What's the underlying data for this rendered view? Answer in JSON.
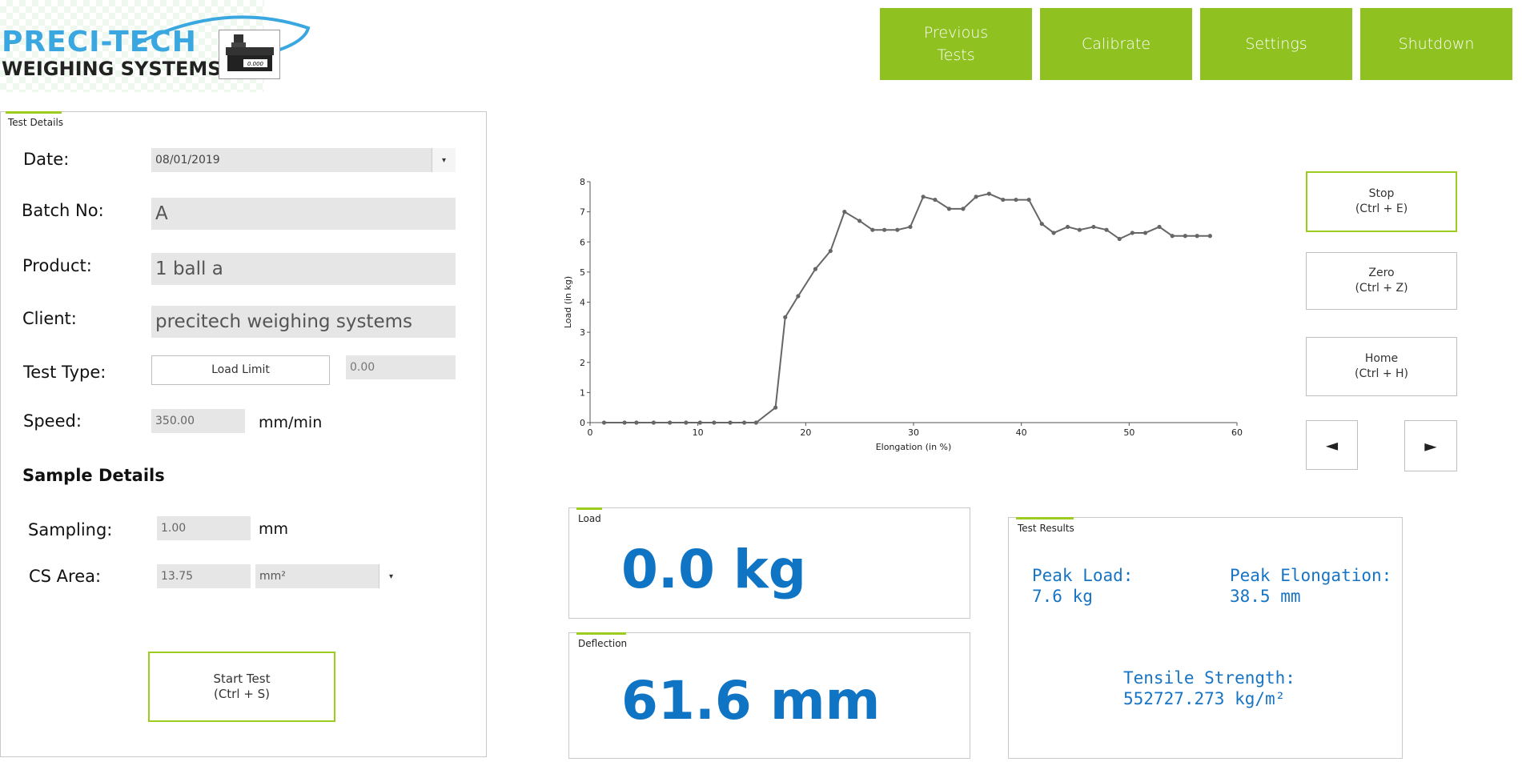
{
  "logo": {
    "line1": "PRECI-TECH",
    "line2": "WEIGHING SYSTEMS",
    "display": "0.000"
  },
  "nav": {
    "previous_tests": "Previous\nTests",
    "calibrate": "Calibrate",
    "settings": "Settings",
    "shutdown": "Shutdown"
  },
  "test_details": {
    "title": "Test Details",
    "date_label": "Date:",
    "date_value": "08/01/2019",
    "batch_label": "Batch No:",
    "batch_value": "A",
    "product_label": "Product:",
    "product_value": "1 ball a",
    "client_label": "Client:",
    "client_value": "precitech weighing systems",
    "test_type_label": "Test Type:",
    "test_type_button": "Load Limit",
    "test_type_value": "0.00",
    "speed_label": "Speed:",
    "speed_value": "350.00",
    "speed_unit": "mm/min",
    "sample_heading": "Sample Details",
    "sampling_label": "Sampling:",
    "sampling_value": "1.00",
    "sampling_unit": "mm",
    "cs_area_label": "CS Area:",
    "cs_area_value": "13.75",
    "cs_area_unit": "mm²",
    "start_button": "Start Test\n(Ctrl + S)"
  },
  "controls": {
    "stop": "Stop\n(Ctrl + E)",
    "zero": "Zero\n(Ctrl + Z)",
    "home": "Home\n(Ctrl + H)",
    "left_arrow": "◄",
    "right_arrow": "►"
  },
  "load_panel": {
    "title": "Load",
    "value": "0.0 kg"
  },
  "deflection_panel": {
    "title": "Deflection",
    "value": "61.6 mm"
  },
  "results": {
    "title": "Test Results",
    "peak_load": "Peak Load:\n7.6 kg",
    "peak_elongation": "Peak Elongation:\n38.5 mm",
    "tensile_strength": "Tensile Strength:\n552727.273 kg/m²"
  },
  "colors": {
    "accent": "#8fc121",
    "value_blue": "#1074c4"
  },
  "chart_data": {
    "type": "line",
    "xlabel": "Elongation (in %)",
    "ylabel": "Load (in kg)",
    "xlim": [
      0,
      60
    ],
    "ylim": [
      0,
      8
    ],
    "xticks": [
      0,
      10,
      20,
      30,
      40,
      50,
      60
    ],
    "yticks": [
      0,
      1,
      2,
      3,
      4,
      5,
      6,
      7,
      8
    ],
    "series": [
      {
        "x": [
          1.3,
          3.2,
          4.3,
          5.9,
          7.4,
          8.9,
          10.2,
          11.5,
          13.0,
          14.3,
          15.4,
          17.2,
          18.1,
          19.3,
          20.9,
          22.3,
          23.6,
          25.0,
          26.2,
          27.3,
          28.5,
          29.7,
          30.9,
          32.0,
          33.3,
          34.6,
          35.8,
          37.0,
          38.3,
          39.5,
          40.7,
          41.9,
          43.0,
          44.3,
          45.4,
          46.7,
          47.9,
          49.1,
          50.3,
          51.5,
          52.8,
          54.0,
          55.2,
          56.3,
          57.5
        ],
        "y": [
          0,
          0,
          0,
          0,
          0,
          0,
          0,
          0,
          0,
          0,
          0,
          0.5,
          3.5,
          4.2,
          5.1,
          5.7,
          7.0,
          6.7,
          6.4,
          6.4,
          6.4,
          6.5,
          7.5,
          7.4,
          7.1,
          7.1,
          7.5,
          7.6,
          7.4,
          7.4,
          7.4,
          6.6,
          6.3,
          6.5,
          6.4,
          6.5,
          6.4,
          6.1,
          6.3,
          6.3,
          6.5,
          6.2,
          6.2,
          6.2,
          6.2
        ]
      }
    ]
  }
}
